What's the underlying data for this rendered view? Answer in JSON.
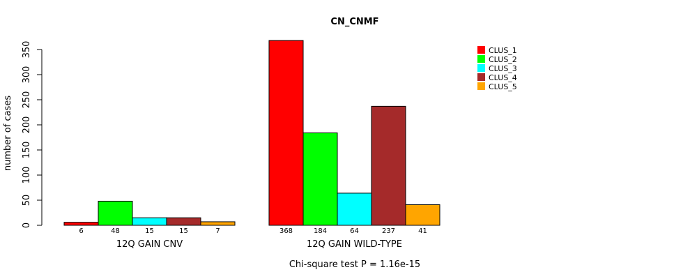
{
  "chart_data": {
    "type": "bar",
    "title": "CN_CNMF",
    "ylabel": "number of cases",
    "ylim": [
      0,
      350
    ],
    "yticks": [
      0,
      50,
      100,
      150,
      200,
      250,
      300,
      350
    ],
    "groups": [
      "12Q GAIN CNV",
      "12Q GAIN WILD-TYPE"
    ],
    "series": [
      {
        "name": "CLUS_1",
        "color": "#ff0000",
        "values": [
          6,
          368
        ]
      },
      {
        "name": "CLUS_2",
        "color": "#00ff00",
        "values": [
          48,
          184
        ]
      },
      {
        "name": "CLUS_3",
        "color": "#00ffff",
        "values": [
          15,
          64
        ]
      },
      {
        "name": "CLUS_4",
        "color": "#a52a2a",
        "values": [
          15,
          237
        ]
      },
      {
        "name": "CLUS_5",
        "color": "#ffa500",
        "values": [
          7,
          41
        ]
      }
    ],
    "footnote": "Chi-square test P = 1.16e-15",
    "legend_position": "top-right"
  }
}
